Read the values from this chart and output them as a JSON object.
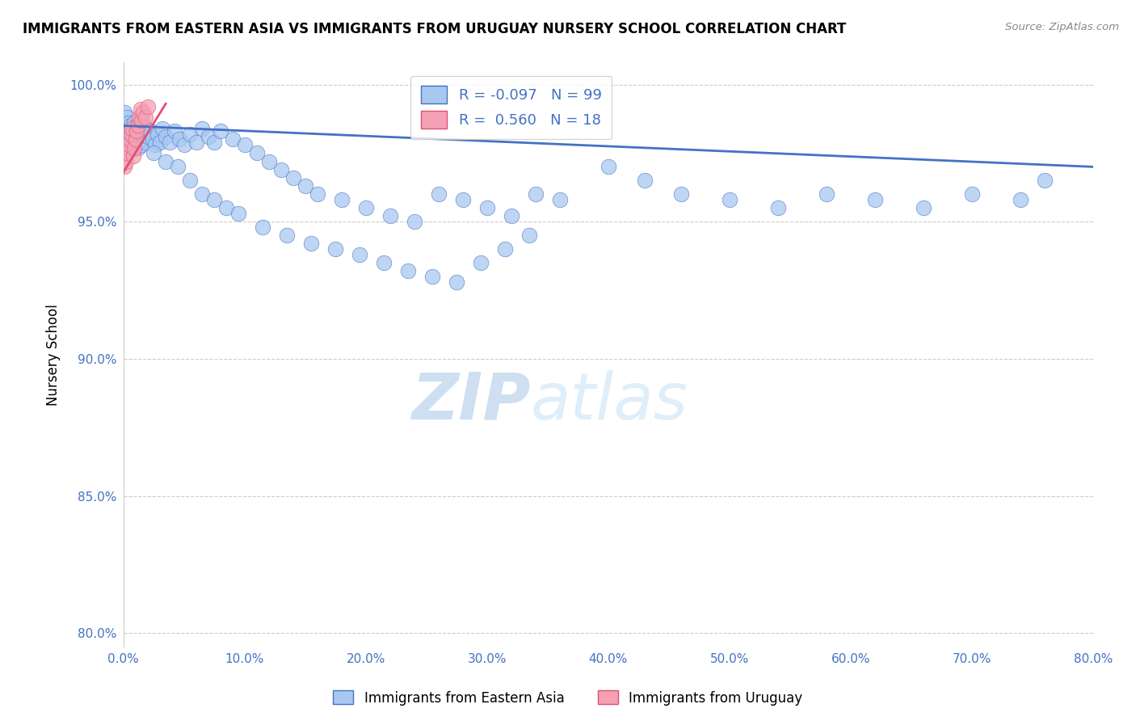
{
  "title": "IMMIGRANTS FROM EASTERN ASIA VS IMMIGRANTS FROM URUGUAY NURSERY SCHOOL CORRELATION CHART",
  "source": "Source: ZipAtlas.com",
  "xlabel_blue": "Immigrants from Eastern Asia",
  "xlabel_pink": "Immigrants from Uruguay",
  "ylabel": "Nursery School",
  "watermark_zip": "ZIP",
  "watermark_atlas": "atlas",
  "legend_blue_R": -0.097,
  "legend_blue_N": 99,
  "legend_pink_R": 0.56,
  "legend_pink_N": 18,
  "blue_color": "#A8C8F0",
  "pink_color": "#F4A0B5",
  "blue_line_color": "#4472C4",
  "pink_line_color": "#E05070",
  "tick_color": "#4472C4",
  "xlim": [
    0.0,
    0.8
  ],
  "ylim": [
    0.795,
    1.008
  ],
  "yticks": [
    0.8,
    0.85,
    0.9,
    0.95,
    1.0
  ],
  "ytick_labels": [
    "80.0%",
    "85.0%",
    "90.0%",
    "95.0%",
    "100.0%"
  ],
  "xticks": [
    0.0,
    0.1,
    0.2,
    0.3,
    0.4,
    0.5,
    0.6,
    0.7,
    0.8
  ],
  "xtick_labels": [
    "0.0%",
    "10.0%",
    "20.0%",
    "30.0%",
    "40.0%",
    "50.0%",
    "60.0%",
    "70.0%",
    "80.0%"
  ],
  "blue_x": [
    0.001,
    0.002,
    0.003,
    0.003,
    0.004,
    0.004,
    0.005,
    0.005,
    0.006,
    0.006,
    0.007,
    0.007,
    0.008,
    0.008,
    0.009,
    0.009,
    0.01,
    0.01,
    0.011,
    0.011,
    0.012,
    0.012,
    0.013,
    0.013,
    0.014,
    0.015,
    0.015,
    0.016,
    0.016,
    0.017,
    0.018,
    0.019,
    0.02,
    0.022,
    0.024,
    0.026,
    0.028,
    0.03,
    0.032,
    0.035,
    0.038,
    0.042,
    0.046,
    0.05,
    0.055,
    0.06,
    0.065,
    0.07,
    0.075,
    0.08,
    0.09,
    0.1,
    0.11,
    0.12,
    0.13,
    0.14,
    0.15,
    0.16,
    0.18,
    0.2,
    0.22,
    0.24,
    0.26,
    0.28,
    0.3,
    0.32,
    0.34,
    0.36,
    0.4,
    0.43,
    0.46,
    0.5,
    0.54,
    0.58,
    0.62,
    0.66,
    0.7,
    0.74,
    0.76,
    0.025,
    0.035,
    0.045,
    0.055,
    0.065,
    0.075,
    0.085,
    0.095,
    0.115,
    0.135,
    0.155,
    0.175,
    0.195,
    0.215,
    0.235,
    0.255,
    0.275,
    0.295,
    0.315,
    0.335
  ],
  "blue_y": [
    0.99,
    0.984,
    0.988,
    0.979,
    0.986,
    0.981,
    0.983,
    0.977,
    0.985,
    0.98,
    0.982,
    0.978,
    0.984,
    0.979,
    0.986,
    0.981,
    0.983,
    0.978,
    0.985,
    0.98,
    0.982,
    0.977,
    0.984,
    0.979,
    0.986,
    0.983,
    0.978,
    0.985,
    0.98,
    0.982,
    0.979,
    0.984,
    0.981,
    0.983,
    0.98,
    0.978,
    0.982,
    0.979,
    0.984,
    0.981,
    0.979,
    0.983,
    0.98,
    0.978,
    0.982,
    0.979,
    0.984,
    0.981,
    0.979,
    0.983,
    0.98,
    0.978,
    0.975,
    0.972,
    0.969,
    0.966,
    0.963,
    0.96,
    0.958,
    0.955,
    0.952,
    0.95,
    0.96,
    0.958,
    0.955,
    0.952,
    0.96,
    0.958,
    0.97,
    0.965,
    0.96,
    0.958,
    0.955,
    0.96,
    0.958,
    0.955,
    0.96,
    0.958,
    0.965,
    0.975,
    0.972,
    0.97,
    0.965,
    0.96,
    0.958,
    0.955,
    0.953,
    0.948,
    0.945,
    0.942,
    0.94,
    0.938,
    0.935,
    0.932,
    0.93,
    0.928,
    0.935,
    0.94,
    0.945
  ],
  "pink_x": [
    0.001,
    0.002,
    0.003,
    0.004,
    0.005,
    0.006,
    0.007,
    0.008,
    0.009,
    0.01,
    0.011,
    0.012,
    0.013,
    0.014,
    0.015,
    0.016,
    0.018,
    0.02
  ],
  "pink_y": [
    0.97,
    0.972,
    0.975,
    0.978,
    0.98,
    0.982,
    0.984,
    0.974,
    0.977,
    0.98,
    0.983,
    0.985,
    0.988,
    0.991,
    0.987,
    0.99,
    0.988,
    0.992
  ],
  "blue_line_x": [
    0.0,
    0.8
  ],
  "blue_line_y": [
    0.985,
    0.97
  ],
  "pink_line_x": [
    0.0,
    0.035
  ],
  "pink_line_y": [
    0.968,
    0.993
  ]
}
